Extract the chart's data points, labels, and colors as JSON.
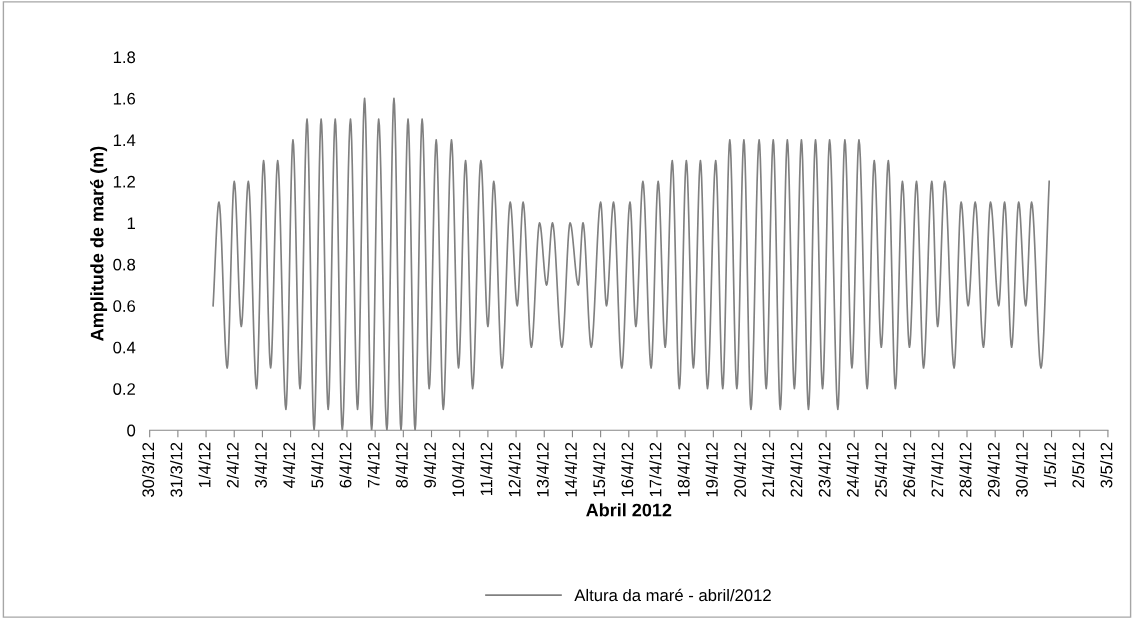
{
  "chart_data": {
    "type": "line",
    "xlabel": "Abril 2012",
    "ylabel": "Amplitude de maré (m)",
    "x": [
      "2012-04-01T06:00",
      "2012-04-01T11:00",
      "2012-04-01T18:00",
      "2012-04-02T00:00",
      "2012-04-02T06:00",
      "2012-04-02T12:00",
      "2012-04-02T19:00",
      "2012-04-03T01:00",
      "2012-04-03T07:00",
      "2012-04-03T13:00",
      "2012-04-03T20:00",
      "2012-04-04T02:00",
      "2012-04-04T08:00",
      "2012-04-04T14:00",
      "2012-04-04T20:00",
      "2012-04-05T02:00",
      "2012-04-05T08:00",
      "2012-04-05T14:00",
      "2012-04-05T20:00",
      "2012-04-06T03:00",
      "2012-04-06T09:00",
      "2012-04-06T15:00",
      "2012-04-06T21:00",
      "2012-04-07T03:00",
      "2012-04-07T10:00",
      "2012-04-07T16:00",
      "2012-04-07T22:00",
      "2012-04-08T04:00",
      "2012-04-08T10:00",
      "2012-04-08T16:00",
      "2012-04-08T22:00",
      "2012-04-09T04:00",
      "2012-04-09T10:00",
      "2012-04-09T17:00",
      "2012-04-09T23:00",
      "2012-04-10T05:00",
      "2012-04-10T11:00",
      "2012-04-10T18:00",
      "2012-04-11T00:00",
      "2012-04-11T05:00",
      "2012-04-11T12:00",
      "2012-04-11T19:00",
      "2012-04-12T01:00",
      "2012-04-12T06:00",
      "2012-04-12T13:00",
      "2012-04-12T20:00",
      "2012-04-13T02:00",
      "2012-04-13T07:00",
      "2012-04-13T15:00",
      "2012-04-13T22:00",
      "2012-04-14T05:00",
      "2012-04-14T09:00",
      "2012-04-14T16:00",
      "2012-04-15T00:00",
      "2012-04-15T05:00",
      "2012-04-15T11:00",
      "2012-04-15T18:00",
      "2012-04-16T01:00",
      "2012-04-16T06:00",
      "2012-04-16T12:00",
      "2012-04-16T19:00",
      "2012-04-17T01:00",
      "2012-04-17T07:00",
      "2012-04-17T13:00",
      "2012-04-17T19:00",
      "2012-04-18T01:00",
      "2012-04-18T07:00",
      "2012-04-18T13:00",
      "2012-04-18T19:00",
      "2012-04-19T02:00",
      "2012-04-19T08:00",
      "2012-04-19T14:00",
      "2012-04-19T20:00",
      "2012-04-20T02:00",
      "2012-04-20T08:00",
      "2012-04-20T15:00",
      "2012-04-20T21:00",
      "2012-04-21T03:00",
      "2012-04-21T09:00",
      "2012-04-21T15:00",
      "2012-04-21T21:00",
      "2012-04-22T03:00",
      "2012-04-22T09:00",
      "2012-04-22T15:00",
      "2012-04-22T21:00",
      "2012-04-23T03:00",
      "2012-04-23T10:00",
      "2012-04-23T16:00",
      "2012-04-23T22:00",
      "2012-04-24T04:00",
      "2012-04-24T11:00",
      "2012-04-24T17:00",
      "2012-04-24T23:00",
      "2012-04-25T05:00",
      "2012-04-25T11:00",
      "2012-04-25T17:00",
      "2012-04-25T23:00",
      "2012-04-26T05:00",
      "2012-04-26T11:00",
      "2012-04-26T18:00",
      "2012-04-26T23:00",
      "2012-04-27T05:00",
      "2012-04-27T13:00",
      "2012-04-27T19:00",
      "2012-04-28T01:00",
      "2012-04-28T07:00",
      "2012-04-28T14:00",
      "2012-04-28T20:00",
      "2012-04-29T03:00",
      "2012-04-29T08:00",
      "2012-04-29T14:00",
      "2012-04-29T20:00",
      "2012-04-30T02:00",
      "2012-04-30T07:00",
      "2012-04-30T15:00",
      "2012-04-30T22:00"
    ],
    "series": [
      {
        "name": "Altura da maré - abril/2012",
        "color": "#808080",
        "values": [
          0.6,
          1.1,
          0.3,
          1.2,
          0.5,
          1.2,
          0.2,
          1.3,
          0.3,
          1.3,
          0.1,
          1.4,
          0.2,
          1.5,
          0,
          1.5,
          0.1,
          1.5,
          0,
          1.5,
          0.1,
          1.6,
          0,
          1.5,
          0,
          1.6,
          0,
          1.5,
          0,
          1.5,
          0.2,
          1.4,
          0.1,
          1.4,
          0.3,
          1.3,
          0.2,
          1.3,
          0.5,
          1.2,
          0.3,
          1.1,
          0.6,
          1.1,
          0.4,
          1.0,
          0.7,
          1.0,
          0.4,
          1.0,
          0.7,
          1.0,
          0.4,
          1.1,
          0.6,
          1.1,
          0.3,
          1.1,
          0.5,
          1.2,
          0.3,
          1.2,
          0.4,
          1.3,
          0.2,
          1.3,
          0.3,
          1.3,
          0.2,
          1.3,
          0.2,
          1.4,
          0.2,
          1.4,
          0.1,
          1.4,
          0.2,
          1.4,
          0.1,
          1.4,
          0.2,
          1.4,
          0.1,
          1.4,
          0.2,
          1.4,
          0.1,
          1.4,
          0.3,
          1.4,
          0.2,
          1.3,
          0.4,
          1.3,
          0.2,
          1.2,
          0.4,
          1.2,
          0.3,
          1.2,
          0.5,
          1.2,
          0.3,
          1.1,
          0.6,
          1.1,
          0.4,
          1.1,
          0.6,
          1.1,
          0.4,
          1.1,
          0.6,
          1.1,
          0.3,
          1.2
        ]
      }
    ],
    "xlim": [
      "2012-03-30",
      "2012-05-03"
    ],
    "xticks": [
      {
        "value": "2012-03-30",
        "label": "30/3/12"
      },
      {
        "value": "2012-03-31",
        "label": "31/3/12"
      },
      {
        "value": "2012-04-01",
        "label": "1/4/12"
      },
      {
        "value": "2012-04-02",
        "label": "2/4/12"
      },
      {
        "value": "2012-04-03",
        "label": "3/4/12"
      },
      {
        "value": "2012-04-04",
        "label": "4/4/12"
      },
      {
        "value": "2012-04-05",
        "label": "5/4/12"
      },
      {
        "value": "2012-04-06",
        "label": "6/4/12"
      },
      {
        "value": "2012-04-07",
        "label": "7/4/12"
      },
      {
        "value": "2012-04-08",
        "label": "8/4/12"
      },
      {
        "value": "2012-04-09",
        "label": "9/4/12"
      },
      {
        "value": "2012-04-10",
        "label": "10/4/12"
      },
      {
        "value": "2012-04-11",
        "label": "11/4/12"
      },
      {
        "value": "2012-04-12",
        "label": "12/4/12"
      },
      {
        "value": "2012-04-13",
        "label": "13/4/12"
      },
      {
        "value": "2012-04-14",
        "label": "14/4/12"
      },
      {
        "value": "2012-04-15",
        "label": "15/4/12"
      },
      {
        "value": "2012-04-16",
        "label": "16/4/12"
      },
      {
        "value": "2012-04-17",
        "label": "17/4/12"
      },
      {
        "value": "2012-04-18",
        "label": "18/4/12"
      },
      {
        "value": "2012-04-19",
        "label": "19/4/12"
      },
      {
        "value": "2012-04-20",
        "label": "20/4/12"
      },
      {
        "value": "2012-04-21",
        "label": "21/4/12"
      },
      {
        "value": "2012-04-22",
        "label": "22/4/12"
      },
      {
        "value": "2012-04-23",
        "label": "23/4/12"
      },
      {
        "value": "2012-04-24",
        "label": "24/4/12"
      },
      {
        "value": "2012-04-25",
        "label": "25/4/12"
      },
      {
        "value": "2012-04-26",
        "label": "26/4/12"
      },
      {
        "value": "2012-04-27",
        "label": "27/4/12"
      },
      {
        "value": "2012-04-28",
        "label": "28/4/12"
      },
      {
        "value": "2012-04-29",
        "label": "29/4/12"
      },
      {
        "value": "2012-04-30",
        "label": "30/4/12"
      },
      {
        "value": "2012-05-01",
        "label": "1/5/12"
      },
      {
        "value": "2012-05-02",
        "label": "2/5/12"
      },
      {
        "value": "2012-05-03",
        "label": "3/5/12"
      }
    ],
    "ylim": [
      0,
      1.8
    ],
    "yticks": [
      0,
      0.2,
      0.4,
      0.6,
      0.8,
      1,
      1.2,
      1.4,
      1.6,
      1.8
    ],
    "grid": false,
    "legend": "bottom",
    "marker": "none",
    "line_style": "solid"
  }
}
